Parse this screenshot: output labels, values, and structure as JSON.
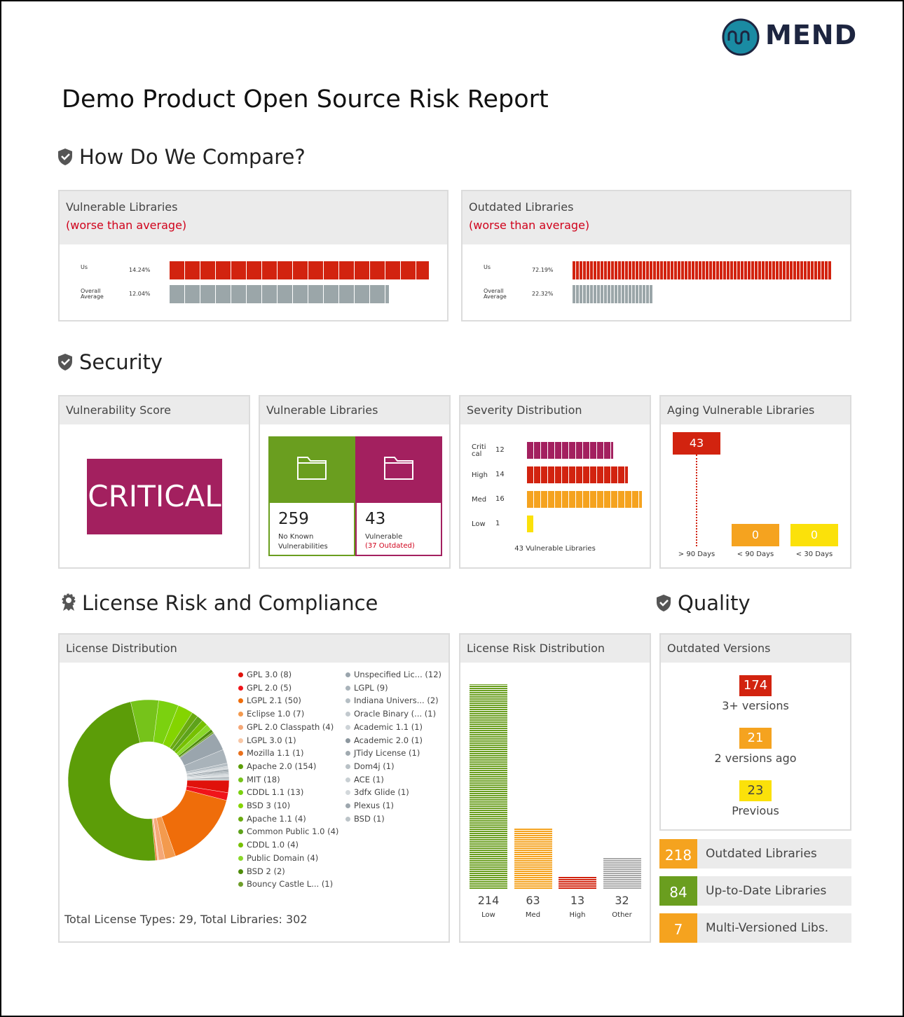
{
  "logo": "MEND",
  "title": "Demo Product Open Source Risk Report",
  "compare": {
    "heading": "How Do We Compare?",
    "panels": [
      {
        "title": "Vulnerable Libraries",
        "note": "(worse than average)",
        "categories": [
          "Us",
          "Overall Average"
        ],
        "values": [
          14.24,
          12.04
        ],
        "value_labels": [
          "14.24%",
          "12.04%"
        ],
        "colors": [
          "#d2230f",
          "#9ba6a9"
        ]
      },
      {
        "title": "Outdated Libraries",
        "note": "(worse than average)",
        "categories": [
          "Us",
          "Overall Average"
        ],
        "values": [
          72.19,
          22.32
        ],
        "value_labels": [
          "72.19%",
          "22.32%"
        ],
        "colors": [
          "#d2230f",
          "#9ba6a9"
        ]
      }
    ]
  },
  "security": {
    "heading": "Security",
    "score": {
      "title": "Vulnerability Score",
      "value": "CRITICAL",
      "color": "#a3205f"
    },
    "libraries": {
      "title": "Vulnerable Libraries",
      "tiles": [
        {
          "value": 259,
          "label": "No Known Vulnerabilities",
          "color": "#6a9e1f"
        },
        {
          "value": 43,
          "label": "Vulnerable",
          "note": "(37 Outdated)",
          "color": "#a3205f"
        }
      ]
    },
    "severity": {
      "title": "Severity Distribution",
      "type": "bar",
      "categories": [
        "Critical",
        "High",
        "Med",
        "Low"
      ],
      "values": [
        12,
        14,
        16,
        1
      ],
      "colors": [
        "#a3205f",
        "#d2230f",
        "#f5a31f",
        "#fbe10a"
      ],
      "footer": "43 Vulnerable Libraries"
    },
    "aging": {
      "title": "Aging Vulnerable Libraries",
      "categories": [
        "> 90 Days",
        "< 90 Days",
        "< 30 Days"
      ],
      "values": [
        43,
        0,
        0
      ],
      "colors": [
        "#d2230f",
        "#f5a31f",
        "#fbe10a"
      ]
    }
  },
  "license": {
    "heading": "License Risk and Compliance",
    "distribution": {
      "title": "License Distribution",
      "type": "donut",
      "labels": [
        "GPL 3.0 (8)",
        "GPL 2.0 (5)",
        "LGPL 2.1 (50)",
        "Eclipse 1.0 (7)",
        "GPL 2.0 Classpath (4)",
        "LGPL 3.0 (1)",
        "Mozilla 1.1 (1)",
        "Apache 2.0 (154)",
        "MIT (18)",
        "CDDL 1.1 (13)",
        "BSD 3 (10)",
        "Apache 1.1 (4)",
        "Common Public 1.0 (4)",
        "CDDL 1.0 (4)",
        "Public Domain (4)",
        "BSD 2 (2)",
        "Bouncy Castle L... (1)",
        "Unspecified Lic... (12)",
        "LGPL (9)",
        "Indiana Univers... (2)",
        "Oracle Binary (... (1)",
        "Academic 1.1 (1)",
        "Academic 2.0 (1)",
        "JTidy License (1)",
        "Dom4j (1)",
        "ACE (1)",
        "3dfx Glide (1)",
        "Plexus (1)",
        "BSD (1)"
      ],
      "values": [
        8,
        5,
        50,
        7,
        4,
        1,
        1,
        154,
        18,
        13,
        10,
        4,
        4,
        4,
        4,
        2,
        1,
        12,
        9,
        2,
        1,
        1,
        1,
        1,
        1,
        1,
        1,
        1,
        1
      ],
      "colors": [
        "#e0120b",
        "#f0141a",
        "#ef6d0a",
        "#f39a4e",
        "#f5a878",
        "#f8c7a6",
        "#e9701c",
        "#5c9d08",
        "#76c31a",
        "#7bd10f",
        "#84d400",
        "#6aaa10",
        "#5ea21b",
        "#76c000",
        "#8ad82a",
        "#4e8c0a",
        "#6e9e2a",
        "#9aa5ad",
        "#a9b3ba",
        "#b5bec4",
        "#c2c9ce",
        "#cdd3d7",
        "#8c979e",
        "#a0aab0",
        "#b9c1c6",
        "#c8cfd3",
        "#d3d8db",
        "#9da7ae",
        "#bcc4c8"
      ],
      "footer": "Total License Types: 29, Total Libraries: 302"
    },
    "risk": {
      "title": "License Risk Distribution",
      "type": "bar",
      "categories": [
        "Low",
        "Med",
        "High",
        "Other"
      ],
      "values": [
        214,
        63,
        13,
        32
      ],
      "colors": [
        "#6a9e1f",
        "#f5a31f",
        "#d2230f",
        "#a9a9a9"
      ]
    }
  },
  "quality": {
    "heading": "Quality",
    "versions": {
      "title": "Outdated Versions",
      "items": [
        {
          "value": 174,
          "label": "3+ versions",
          "color": "#d2230f"
        },
        {
          "value": 21,
          "label": "2 versions ago",
          "color": "#f5a31f"
        },
        {
          "value": 23,
          "label": "Previous",
          "color": "#fbe10a"
        }
      ]
    },
    "summary": [
      {
        "value": 218,
        "label": "Outdated Libraries",
        "color": "#f5a31f"
      },
      {
        "value": 84,
        "label": "Up-to-Date Libraries",
        "color": "#6a9e1f"
      },
      {
        "value": 7,
        "label": "Multi-Versioned Libs.",
        "color": "#f5a31f"
      }
    ]
  }
}
